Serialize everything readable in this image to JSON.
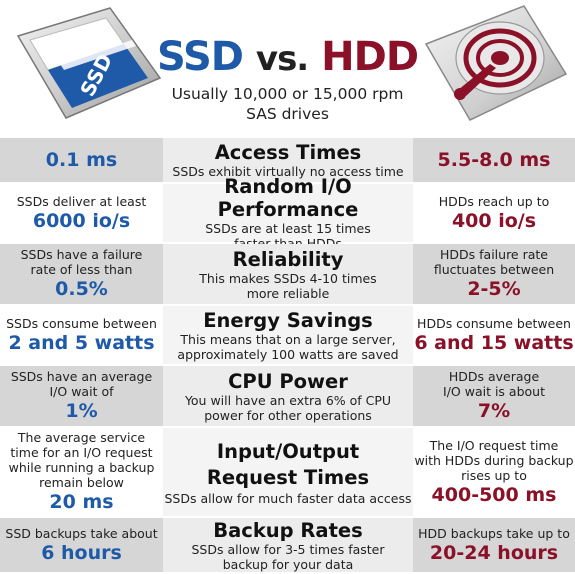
{
  "header": {
    "title_ssd": "SSD",
    "title_vs": "vs.",
    "title_hdd": "HDD",
    "subtitle_line1": "Usually 10,000 or 15,000 rpm",
    "subtitle_line2": "SAS drives",
    "ssd_label": "SSD"
  },
  "colors": {
    "ssd_accent": "#1e5aa8",
    "hdd_accent": "#8a1128",
    "row_shade": "#d9d9d9"
  },
  "rows": [
    {
      "heading": "Access Times",
      "desc": [
        "SSDs exhibit virtually no access time"
      ],
      "ssd_text": [],
      "ssd_value": "0.1 ms",
      "hdd_text": [],
      "hdd_value": "5.5-8.0 ms"
    },
    {
      "heading": "Random I/O Performance",
      "desc": [
        "SSDs are at least 15 times",
        "faster than HDDs"
      ],
      "ssd_text": [
        "SSDs deliver at least"
      ],
      "ssd_value": "6000 io/s",
      "hdd_text": [
        "HDDs reach up to"
      ],
      "hdd_value": "400 io/s"
    },
    {
      "heading": "Reliability",
      "desc": [
        "This makes SSDs 4-10 times",
        "more reliable"
      ],
      "ssd_text": [
        "SSDs have a failure",
        "rate of less than"
      ],
      "ssd_value": "0.5%",
      "hdd_text": [
        "HDDs failure rate",
        "fluctuates between"
      ],
      "hdd_value": "2-5%"
    },
    {
      "heading": "Energy Savings",
      "desc": [
        "This means that on a large server,",
        "approximately 100 watts are saved"
      ],
      "ssd_text": [
        "SSDs consume between"
      ],
      "ssd_value": "2 and 5 watts",
      "hdd_text": [
        "HDDs consume between"
      ],
      "hdd_value": "6 and 15 watts"
    },
    {
      "heading": "CPU Power",
      "desc": [
        "You will have an extra 6% of CPU",
        "power for other operations"
      ],
      "ssd_text": [
        "SSDs have an average",
        "I/O wait of"
      ],
      "ssd_value": "1%",
      "hdd_text": [
        "HDDs average",
        "I/O wait is about"
      ],
      "hdd_value": "7%"
    },
    {
      "heading": "Input/Output",
      "heading2": "Request Times",
      "desc": [
        "SSDs allow for much faster data access"
      ],
      "ssd_text": [
        "The average service",
        "time for an I/O request",
        "while running a backup",
        "remain below"
      ],
      "ssd_value": "20 ms",
      "hdd_text": [
        "The I/O request time",
        "with HDDs during backup",
        "rises up to"
      ],
      "hdd_value": "400-500 ms"
    },
    {
      "heading": "Backup Rates",
      "desc": [
        "SSDs allow for 3-5 times faster",
        "backup for your data"
      ],
      "ssd_text": [
        "SSD backups take about"
      ],
      "ssd_value": "6 hours",
      "hdd_text": [
        "HDD backups take up to"
      ],
      "hdd_value": "20-24 hours"
    }
  ]
}
